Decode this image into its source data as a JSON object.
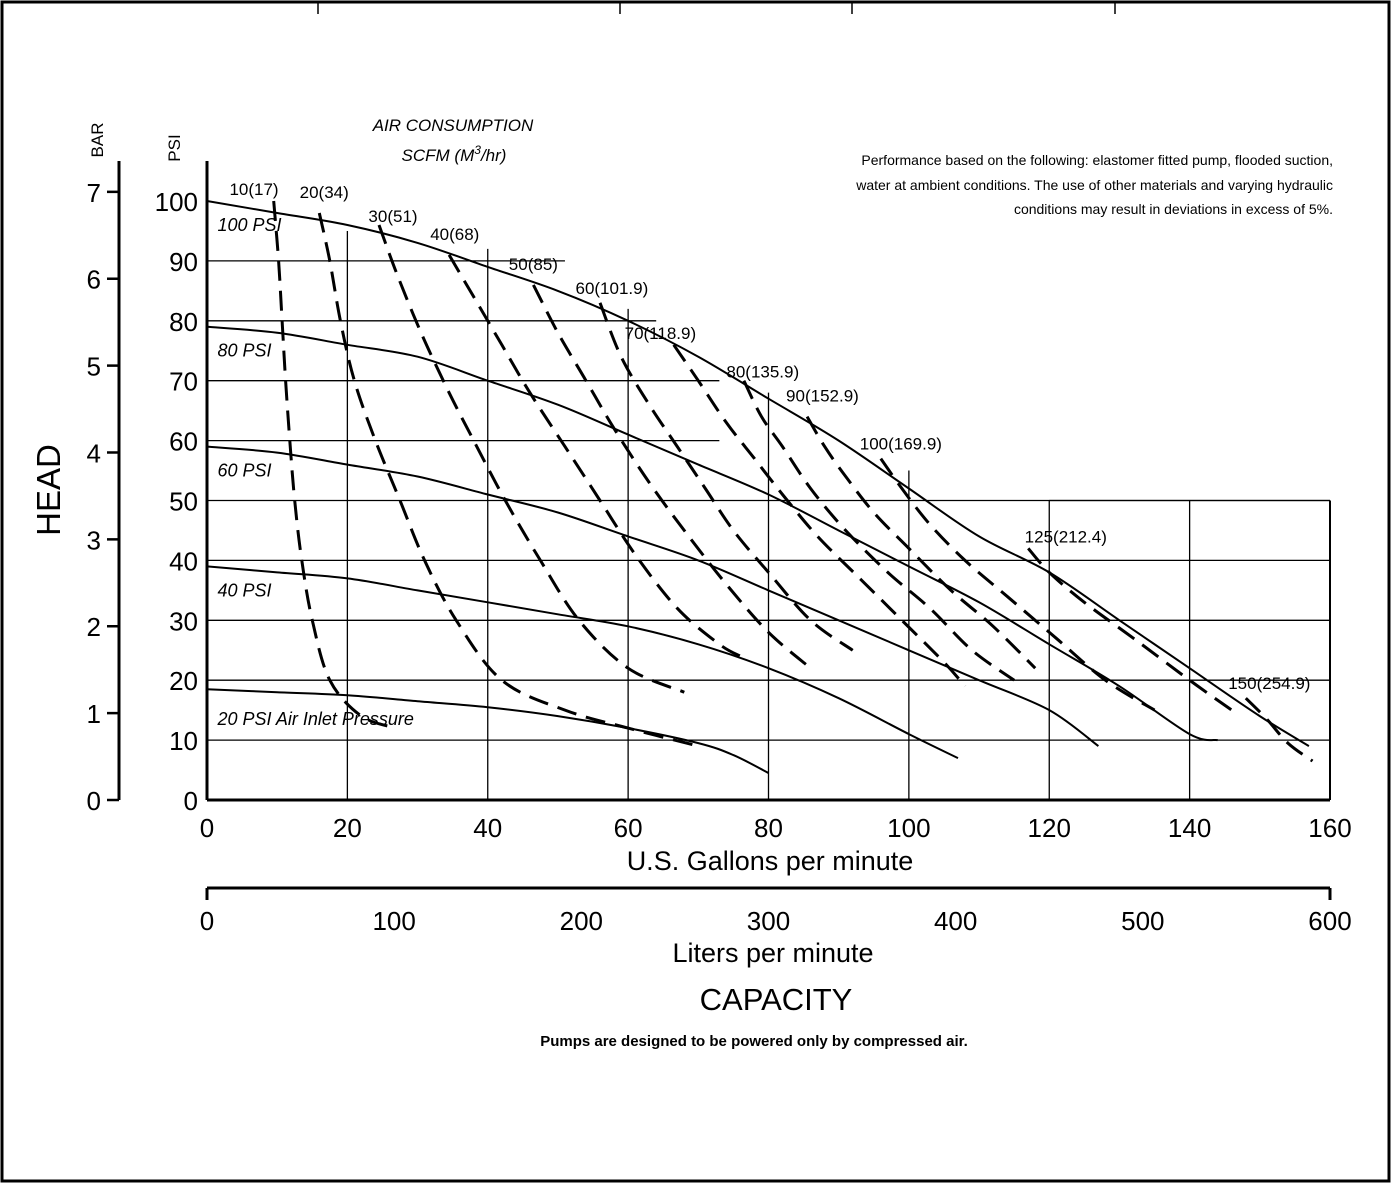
{
  "chart_data": {
    "type": "line",
    "title": "",
    "xlabel": "U.S. Gallons per minute",
    "x2label": "Liters per minute",
    "capacity_label": "CAPACITY",
    "ylabel": "HEAD",
    "y_unit_psi": "PSI",
    "y_unit_bar": "BAR",
    "xlim": [
      0,
      160
    ],
    "ylim": [
      0,
      100
    ],
    "x_ticks": [
      0,
      20,
      40,
      60,
      80,
      100,
      120,
      140,
      160
    ],
    "x2_ticks": [
      0,
      100,
      200,
      300,
      400,
      500,
      600
    ],
    "y_ticks": [
      0,
      10,
      20,
      30,
      40,
      50,
      60,
      70,
      80,
      90,
      100
    ],
    "bar_ticks": [
      0,
      1,
      2,
      3,
      4,
      5,
      6,
      7
    ],
    "grid": true,
    "air_consumption_title": "AIR CONSUMPTION",
    "air_consumption_unit": "SCFM (M",
    "air_consumption_unit_sup": "3",
    "air_consumption_unit_end": "/hr)",
    "performance_note": [
      "Performance based on the following: elastomer fitted pump, flooded suction,",
      "water at ambient conditions. The use of other materials and varying hydraulic",
      "conditions may result in deviations in excess of 5%."
    ],
    "footnote": "Pumps are designed to be powered only by compressed air.",
    "series": [
      {
        "name": "100 PSI",
        "label_at": [
          1.5,
          95
        ],
        "points": [
          [
            0,
            100
          ],
          [
            10,
            98
          ],
          [
            20,
            96
          ],
          [
            30,
            93
          ],
          [
            40,
            89
          ],
          [
            50,
            85
          ],
          [
            60,
            80
          ],
          [
            70,
            74
          ],
          [
            80,
            67
          ],
          [
            90,
            60
          ],
          [
            100,
            52
          ],
          [
            110,
            44
          ],
          [
            120,
            38
          ],
          [
            130,
            30
          ],
          [
            140,
            22
          ],
          [
            150,
            14
          ],
          [
            157,
            9
          ]
        ]
      },
      {
        "name": "80 PSI",
        "label_at": [
          1.5,
          74
        ],
        "points": [
          [
            0,
            79
          ],
          [
            10,
            78
          ],
          [
            20,
            76
          ],
          [
            30,
            74
          ],
          [
            40,
            70
          ],
          [
            50,
            66
          ],
          [
            60,
            61
          ],
          [
            70,
            56
          ],
          [
            80,
            51
          ],
          [
            90,
            45
          ],
          [
            100,
            39
          ],
          [
            110,
            33
          ],
          [
            120,
            26
          ],
          [
            130,
            19
          ],
          [
            140,
            11
          ],
          [
            144,
            10
          ]
        ]
      },
      {
        "name": "60 PSI",
        "label_at": [
          1.5,
          54
        ],
        "points": [
          [
            0,
            59
          ],
          [
            10,
            58
          ],
          [
            20,
            56
          ],
          [
            30,
            54
          ],
          [
            40,
            51
          ],
          [
            50,
            48
          ],
          [
            60,
            44
          ],
          [
            70,
            40
          ],
          [
            80,
            35
          ],
          [
            90,
            30
          ],
          [
            100,
            25
          ],
          [
            110,
            20
          ],
          [
            120,
            15
          ],
          [
            127,
            9
          ]
        ]
      },
      {
        "name": "40 PSI",
        "label_at": [
          1.5,
          34
        ],
        "points": [
          [
            0,
            39
          ],
          [
            10,
            38
          ],
          [
            20,
            37
          ],
          [
            30,
            35
          ],
          [
            40,
            33
          ],
          [
            50,
            31
          ],
          [
            60,
            29
          ],
          [
            70,
            26
          ],
          [
            80,
            22
          ],
          [
            90,
            17
          ],
          [
            100,
            11
          ],
          [
            107,
            7
          ]
        ]
      },
      {
        "name": "20 PSI Air Inlet Pressure",
        "label_at": [
          1.5,
          12.5
        ],
        "points": [
          [
            0,
            18.5
          ],
          [
            10,
            18
          ],
          [
            20,
            17.5
          ],
          [
            30,
            16.5
          ],
          [
            40,
            15.5
          ],
          [
            50,
            14
          ],
          [
            60,
            12
          ],
          [
            70,
            9.5
          ],
          [
            75,
            7.5
          ],
          [
            80,
            4.5
          ]
        ]
      }
    ],
    "air_consumption_lines": [
      {
        "label": "10(17)",
        "label_at": [
          3.2,
          101
        ],
        "points": [
          [
            9.5,
            100
          ],
          [
            10.2,
            90
          ],
          [
            10.7,
            80
          ],
          [
            11.2,
            70
          ],
          [
            11.8,
            60
          ],
          [
            12.5,
            50
          ],
          [
            13.5,
            40
          ],
          [
            15,
            30
          ],
          [
            17.5,
            20
          ],
          [
            22,
            14
          ],
          [
            27,
            12
          ]
        ]
      },
      {
        "label": "20(34)",
        "label_at": [
          13.2,
          100.5
        ],
        "points": [
          [
            16,
            98
          ],
          [
            17.5,
            90
          ],
          [
            19,
            80
          ],
          [
            21,
            70
          ],
          [
            24,
            60
          ],
          [
            27.5,
            50
          ],
          [
            31,
            40
          ],
          [
            35.5,
            30
          ],
          [
            42,
            20
          ],
          [
            51,
            15
          ],
          [
            60,
            12
          ],
          [
            70,
            9
          ]
        ]
      },
      {
        "label": "30(51)",
        "label_at": [
          23,
          96.5
        ],
        "points": [
          [
            24.5,
            96
          ],
          [
            27,
            88
          ],
          [
            30.5,
            78
          ],
          [
            34.5,
            68
          ],
          [
            38,
            60
          ],
          [
            42.5,
            50
          ],
          [
            47.5,
            40
          ],
          [
            53,
            30
          ],
          [
            60,
            22
          ],
          [
            68,
            18
          ]
        ]
      },
      {
        "label": "40(68)",
        "label_at": [
          31.8,
          93.5
        ],
        "points": [
          [
            34.5,
            91
          ],
          [
            38,
            84
          ],
          [
            42,
            76
          ],
          [
            46,
            68
          ],
          [
            51,
            59
          ],
          [
            56,
            50
          ],
          [
            61,
            41
          ],
          [
            67,
            32
          ],
          [
            73,
            26
          ],
          [
            76,
            24
          ]
        ]
      },
      {
        "label": "50(85)",
        "label_at": [
          43,
          88.5
        ],
        "points": [
          [
            46.5,
            86
          ],
          [
            50,
            78
          ],
          [
            54,
            70
          ],
          [
            58,
            62
          ],
          [
            63,
            53
          ],
          [
            68,
            45
          ],
          [
            74,
            36
          ],
          [
            80,
            28
          ],
          [
            86,
            22
          ]
        ]
      },
      {
        "label": "60(101.9)",
        "label_at": [
          52.5,
          84.5
        ],
        "points": [
          [
            56,
            83
          ],
          [
            59,
            74
          ],
          [
            63,
            66
          ],
          [
            67,
            59
          ],
          [
            71,
            52
          ],
          [
            75,
            45
          ],
          [
            80,
            38
          ],
          [
            86,
            30
          ],
          [
            92,
            25
          ]
        ]
      },
      {
        "label": "70(118.9)",
        "label_at": [
          59.5,
          77
        ],
        "points": [
          [
            66.5,
            76
          ],
          [
            70,
            70
          ],
          [
            74,
            63
          ],
          [
            78,
            57
          ],
          [
            82,
            51
          ],
          [
            87,
            44
          ],
          [
            93,
            37
          ],
          [
            99,
            30
          ],
          [
            105,
            23
          ],
          [
            108,
            19
          ]
        ]
      },
      {
        "label": "80(135.9)",
        "label_at": [
          74,
          70.5
        ],
        "points": [
          [
            76.5,
            70
          ],
          [
            79,
            64
          ],
          [
            82,
            59
          ],
          [
            86,
            52
          ],
          [
            91,
            45
          ],
          [
            97,
            38
          ],
          [
            103,
            32
          ],
          [
            109,
            25
          ],
          [
            115,
            20
          ]
        ]
      },
      {
        "label": "90(152.9)",
        "label_at": [
          82.5,
          66.5
        ],
        "points": [
          [
            85.5,
            64
          ],
          [
            88,
            59
          ],
          [
            91,
            54
          ],
          [
            95,
            48
          ],
          [
            100,
            42
          ],
          [
            106,
            35
          ],
          [
            112,
            29
          ],
          [
            118,
            22
          ]
        ]
      },
      {
        "label": "100(169.9)",
        "label_at": [
          93,
          58.5
        ],
        "points": [
          [
            96,
            57
          ],
          [
            99,
            52
          ],
          [
            103,
            46
          ],
          [
            108,
            40
          ],
          [
            114,
            34
          ],
          [
            121,
            27
          ],
          [
            128,
            20
          ],
          [
            135,
            15
          ]
        ]
      },
      {
        "label": "125(212.4)",
        "label_at": [
          116.5,
          43
        ],
        "points": [
          [
            117,
            42
          ],
          [
            120,
            38
          ],
          [
            125,
            33
          ],
          [
            132,
            27
          ],
          [
            140,
            20
          ],
          [
            146,
            15
          ]
        ]
      },
      {
        "label": "150(254.9)",
        "label_at": [
          145.5,
          18.5
        ],
        "points": [
          [
            148,
            17
          ],
          [
            151,
            13.5
          ],
          [
            154,
            9.5
          ],
          [
            157.5,
            6.5
          ]
        ]
      }
    ]
  }
}
